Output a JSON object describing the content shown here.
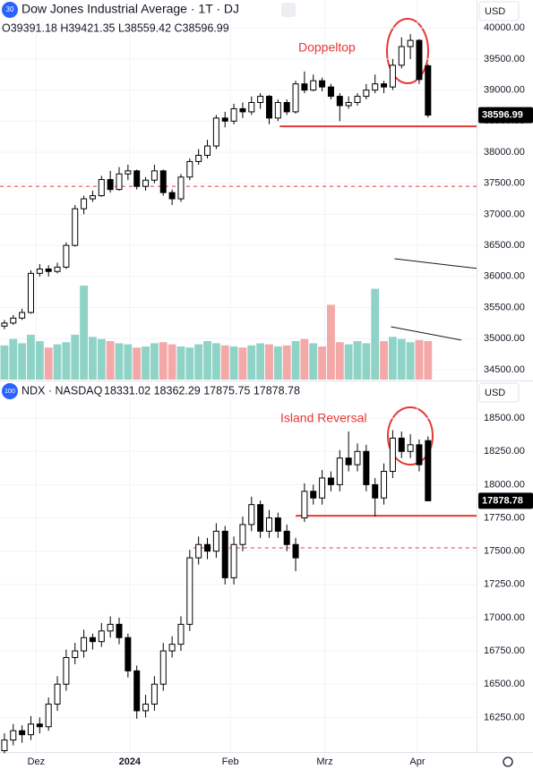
{
  "chart_data": [
    {
      "type": "candlestick",
      "title": "Dow Jones Industrial Average · 1T · DJ",
      "icon_label": "30",
      "ohlc_text": "O39391.18 H39421.35 L38559.42 C38596.99",
      "currency": "USD",
      "annotation": "Doppeltop",
      "up_color": "#ffffff",
      "down_color": "#000000",
      "volume_up_color": "#8fd3c7",
      "volume_down_color": "#f4a8a8",
      "xlim": [
        -0.5,
        53.5
      ],
      "ylim": [
        34340,
        40450
      ],
      "yticks": [
        {
          "value": 34500,
          "label": "34500.00"
        },
        {
          "value": 35000,
          "label": "35000.00"
        },
        {
          "value": 35500,
          "label": "35500.00"
        },
        {
          "value": 36000,
          "label": "36000.00"
        },
        {
          "value": 36500,
          "label": "36500.00"
        },
        {
          "value": 37000,
          "label": "37000.00"
        },
        {
          "value": 37500,
          "label": "37500.00"
        },
        {
          "value": 38000,
          "label": "38000.00"
        },
        {
          "value": 38500,
          "label": "38500.00"
        },
        {
          "value": 39000,
          "label": "39000.00"
        },
        {
          "value": 39500,
          "label": "39500.00"
        },
        {
          "value": 40000,
          "label": "40000.00"
        }
      ],
      "grid": true,
      "candles": [
        [
          35200,
          35300,
          35150,
          35250
        ],
        [
          35250,
          35380,
          35220,
          35330
        ],
        [
          35330,
          35480,
          35300,
          35420
        ],
        [
          35420,
          36100,
          35400,
          36050
        ],
        [
          36050,
          36200,
          36000,
          36120
        ],
        [
          36120,
          36180,
          36000,
          36080
        ],
        [
          36080,
          36220,
          36050,
          36150
        ],
        [
          36150,
          36550,
          36120,
          36500
        ],
        [
          36500,
          37150,
          36480,
          37090
        ],
        [
          37090,
          37300,
          37000,
          37250
        ],
        [
          37250,
          37380,
          37200,
          37300
        ],
        [
          37300,
          37620,
          37280,
          37560
        ],
        [
          37560,
          37700,
          37350,
          37400
        ],
        [
          37400,
          37760,
          37380,
          37650
        ],
        [
          37650,
          37800,
          37550,
          37700
        ],
        [
          37700,
          37720,
          37400,
          37450
        ],
        [
          37450,
          37600,
          37380,
          37550
        ],
        [
          37550,
          37800,
          37500,
          37700
        ],
        [
          37700,
          37720,
          37300,
          37350
        ],
        [
          37350,
          37400,
          37150,
          37250
        ],
        [
          37250,
          37650,
          37200,
          37600
        ],
        [
          37600,
          37900,
          37550,
          37850
        ],
        [
          37850,
          38050,
          37800,
          37950
        ],
        [
          37950,
          38200,
          37900,
          38100
        ],
        [
          38100,
          38600,
          38050,
          38550
        ],
        [
          38550,
          38650,
          38400,
          38500
        ],
        [
          38500,
          38780,
          38450,
          38700
        ],
        [
          38700,
          38800,
          38550,
          38650
        ],
        [
          38650,
          38900,
          38600,
          38800
        ],
        [
          38800,
          38950,
          38700,
          38900
        ],
        [
          38900,
          38920,
          38450,
          38550
        ],
        [
          38550,
          38850,
          38500,
          38800
        ],
        [
          38800,
          38850,
          38600,
          38650
        ],
        [
          38650,
          39150,
          38620,
          39100
        ],
        [
          39100,
          39300,
          38950,
          39000
        ],
        [
          39000,
          39250,
          38980,
          39150
        ],
        [
          39150,
          39200,
          38980,
          39050
        ],
        [
          39050,
          39100,
          38850,
          38900
        ],
        [
          38900,
          38950,
          38500,
          38750
        ],
        [
          38750,
          38900,
          38700,
          38800
        ],
        [
          38800,
          38950,
          38750,
          38900
        ],
        [
          38900,
          39100,
          38850,
          39000
        ],
        [
          39000,
          39250,
          38950,
          39100
        ],
        [
          39100,
          39150,
          38950,
          39050
        ],
        [
          39050,
          39500,
          39000,
          39400
        ],
        [
          39400,
          39850,
          39350,
          39700
        ],
        [
          39700,
          39900,
          39500,
          39800
        ],
        [
          39800,
          39820,
          39100,
          39170
        ],
        [
          39391.18,
          39421.35,
          38559.42,
          38596.99
        ]
      ],
      "volume": [
        320,
        380,
        340,
        420,
        360,
        300,
        330,
        350,
        420,
        880,
        400,
        380,
        360,
        340,
        330,
        300,
        310,
        340,
        350,
        330,
        310,
        300,
        330,
        360,
        340,
        320,
        310,
        300,
        320,
        340,
        330,
        310,
        320,
        360,
        380,
        340,
        310,
        700,
        350,
        330,
        360,
        340,
        850,
        360,
        400,
        380,
        350,
        370,
        360
      ],
      "levels": [
        {
          "value": 38416,
          "start": 31.2,
          "dashed": false,
          "color": "#e53935"
        },
        {
          "value": 37451,
          "start": -0.5,
          "dashed": true,
          "color": "#e53935"
        }
      ],
      "trendlines": [
        {
          "x": [
            44.2,
            53.5
          ],
          "y": [
            36285,
            36130
          ],
          "color": "#131722"
        },
        {
          "x": [
            43.8,
            51.8
          ],
          "y": [
            35190,
            34975
          ],
          "color": "#131722"
        }
      ]
    },
    {
      "type": "candlestick",
      "title": "NDX · NASDAQ",
      "icon_label": "100",
      "ohlc_text": "18331.02  18362.29  17875.75  17878.78",
      "currency": "USD",
      "annotation": "Island Reversal",
      "up_color": "#ffffff",
      "down_color": "#000000",
      "xlim": [
        -0.5,
        53.5
      ],
      "ylim": [
        15990,
        18770
      ],
      "yticks": [
        {
          "value": 16250,
          "label": "16250.00"
        },
        {
          "value": 16500,
          "label": "16500.00"
        },
        {
          "value": 16750,
          "label": "16750.00"
        },
        {
          "value": 17000,
          "label": "17000.00"
        },
        {
          "value": 17250,
          "label": "17250.00"
        },
        {
          "value": 17500,
          "label": "17500.00"
        },
        {
          "value": 17750,
          "label": "17750.00"
        },
        {
          "value": 18000,
          "label": "18000.00"
        },
        {
          "value": 18250,
          "label": "18250.00"
        },
        {
          "value": 18500,
          "label": "18500.00"
        }
      ],
      "xticks": [
        {
          "value": 3.6,
          "label": "Dez"
        },
        {
          "value": 14.2,
          "label": "2024"
        },
        {
          "value": 25.6,
          "label": "Feb"
        },
        {
          "value": 36.3,
          "label": "Mrz"
        },
        {
          "value": 46.8,
          "label": "Apr"
        }
      ],
      "grid": true,
      "candles": [
        [
          16000,
          16130,
          15980,
          16080
        ],
        [
          16080,
          16200,
          16040,
          16150
        ],
        [
          16150,
          16190,
          16060,
          16120
        ],
        [
          16120,
          16260,
          16080,
          16200
        ],
        [
          16200,
          16250,
          16130,
          16180
        ],
        [
          16180,
          16400,
          16150,
          16350
        ],
        [
          16350,
          16560,
          16300,
          16500
        ],
        [
          16500,
          16760,
          16450,
          16700
        ],
        [
          16700,
          16810,
          16650,
          16750
        ],
        [
          16750,
          16910,
          16700,
          16850
        ],
        [
          16850,
          16880,
          16760,
          16820
        ],
        [
          16820,
          16960,
          16780,
          16900
        ],
        [
          16900,
          17010,
          16850,
          16950
        ],
        [
          16950,
          17000,
          16800,
          16850
        ],
        [
          16850,
          16880,
          16550,
          16600
        ],
        [
          16600,
          16640,
          16240,
          16300
        ],
        [
          16300,
          16420,
          16250,
          16350
        ],
        [
          16350,
          16560,
          16300,
          16500
        ],
        [
          16500,
          16810,
          16450,
          16750
        ],
        [
          16750,
          16860,
          16700,
          16800
        ],
        [
          16800,
          17010,
          16750,
          16950
        ],
        [
          16950,
          17510,
          16900,
          17450
        ],
        [
          17450,
          17610,
          17400,
          17550
        ],
        [
          17550,
          17600,
          17440,
          17500
        ],
        [
          17500,
          17710,
          17450,
          17650
        ],
        [
          17650,
          17690,
          17250,
          17300
        ],
        [
          17300,
          17610,
          17250,
          17550
        ],
        [
          17550,
          17760,
          17500,
          17700
        ],
        [
          17700,
          17910,
          17650,
          17850
        ],
        [
          17850,
          17880,
          17600,
          17650
        ],
        [
          17650,
          17810,
          17600,
          17750
        ],
        [
          17750,
          17790,
          17600,
          17650
        ],
        [
          17650,
          17700,
          17500,
          17550
        ],
        [
          17550,
          17600,
          17350,
          17450
        ],
        [
          17750,
          18010,
          17720,
          17950
        ],
        [
          17950,
          18000,
          17850,
          17900
        ],
        [
          17900,
          18110,
          17850,
          18050
        ],
        [
          18050,
          18100,
          17950,
          18000
        ],
        [
          18000,
          18260,
          17950,
          18200
        ],
        [
          18200,
          18400,
          18100,
          18150
        ],
        [
          18150,
          18310,
          18100,
          18250
        ],
        [
          18250,
          18300,
          17950,
          18000
        ],
        [
          18000,
          18050,
          17760,
          17900
        ],
        [
          17900,
          18160,
          17850,
          18100
        ],
        [
          18100,
          18410,
          18050,
          18350
        ],
        [
          18350,
          18400,
          18200,
          18250
        ],
        [
          18250,
          18380,
          18200,
          18300
        ],
        [
          18300,
          18340,
          18100,
          18150
        ],
        [
          18331.02,
          18362.29,
          17875.75,
          17878.78
        ]
      ],
      "levels": [
        {
          "value": 17766,
          "start": 33.0,
          "dashed": false,
          "color": "#e53935"
        },
        {
          "value": 17525,
          "start": 21.4,
          "dashed": true,
          "color": "#e53935"
        }
      ]
    }
  ]
}
